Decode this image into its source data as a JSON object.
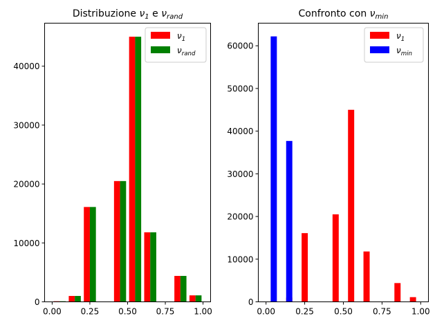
{
  "chart_data": [
    {
      "type": "bar",
      "title": "Distribuzione ν₁ e ν_rand",
      "title_parts": {
        "text": "Distribuzione ",
        "sym1": "ν",
        "sub1": "1",
        "mid": " e ",
        "sym2": "ν",
        "sub2": "rand"
      },
      "x_ticks": [
        "0.00",
        "0.25",
        "0.50",
        "0.75",
        "1.00"
      ],
      "y_ticks": [
        "0",
        "10000",
        "20000",
        "30000",
        "40000"
      ],
      "xlim": [
        -0.05,
        1.05
      ],
      "ylim": [
        0,
        47300
      ],
      "bar_width": 0.04,
      "series": [
        {
          "name": "ν₁",
          "sym": "ν",
          "sub": "1",
          "color": "#ff0000",
          "offset": -0.02,
          "x": [
            0.05,
            0.15,
            0.25,
            0.45,
            0.55,
            0.65,
            0.85,
            0.95
          ],
          "values": [
            100,
            1000,
            16100,
            20500,
            45000,
            11800,
            4400,
            1100
          ]
        },
        {
          "name": "ν_rand",
          "sym": "ν",
          "sub": "rand",
          "color": "#008000",
          "offset": 0.02,
          "x": [
            0.05,
            0.15,
            0.25,
            0.45,
            0.55,
            0.65,
            0.85,
            0.95
          ],
          "values": [
            100,
            1000,
            16100,
            20500,
            45000,
            11800,
            4400,
            1100
          ]
        }
      ],
      "legend": "top-right"
    },
    {
      "type": "bar",
      "title": "Confronto con ν_min",
      "title_parts": {
        "text": "Confronto con ",
        "sym1": "ν",
        "sub1": "min"
      },
      "x_ticks": [
        "0.00",
        "0.25",
        "0.50",
        "0.75",
        "1.00"
      ],
      "y_ticks": [
        "0",
        "10000",
        "20000",
        "30000",
        "40000",
        "50000",
        "60000"
      ],
      "xlim": [
        -0.05,
        1.05
      ],
      "ylim": [
        0,
        65300
      ],
      "bar_width": 0.04,
      "series": [
        {
          "name": "ν₁",
          "sym": "ν",
          "sub": "1",
          "color": "#ff0000",
          "offset": 0.0,
          "x": [
            0.05,
            0.15,
            0.25,
            0.45,
            0.55,
            0.65,
            0.85,
            0.95
          ],
          "values": [
            100,
            1000,
            16100,
            20500,
            45000,
            11800,
            4400,
            1100
          ]
        },
        {
          "name": "ν_min",
          "sym": "ν",
          "sub": "min",
          "color": "#0000ff",
          "offset": 0.0,
          "x": [
            0.05,
            0.15
          ],
          "values": [
            62200,
            37700
          ]
        }
      ],
      "legend": "top-right"
    }
  ]
}
